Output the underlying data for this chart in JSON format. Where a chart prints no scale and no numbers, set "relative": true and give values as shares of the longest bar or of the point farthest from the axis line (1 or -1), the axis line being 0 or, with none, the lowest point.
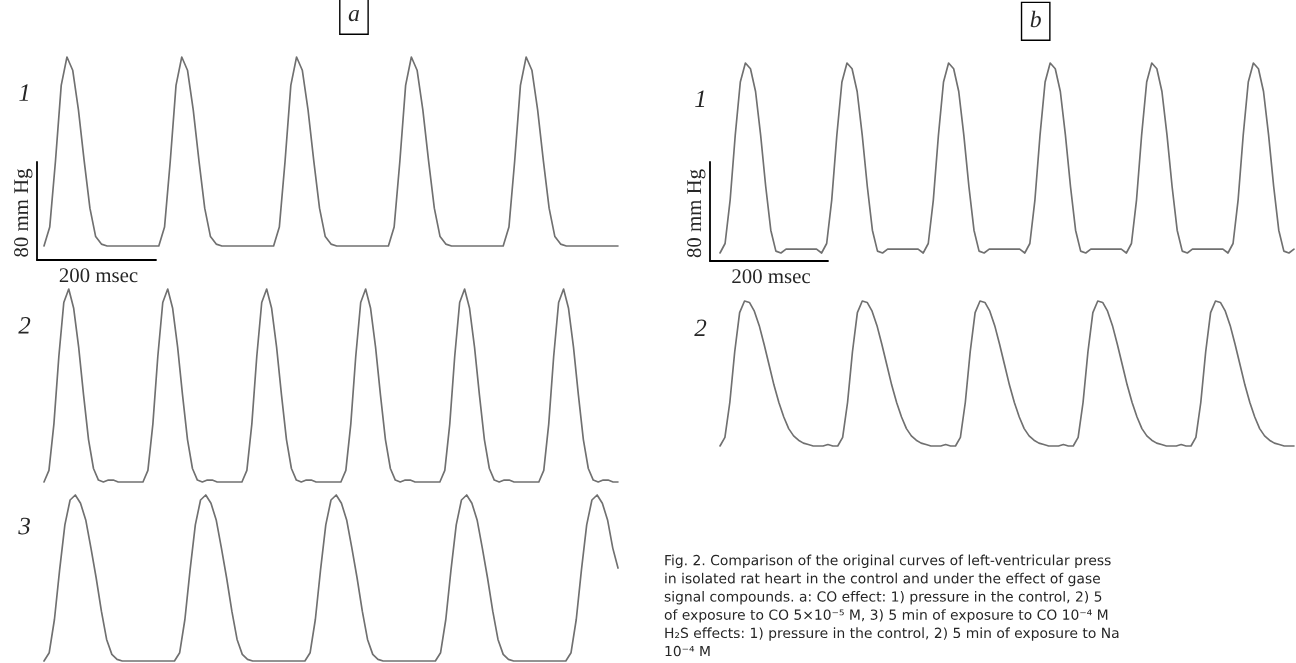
{
  "chart_data": [
    {
      "type": "line",
      "title": "a",
      "relative": true,
      "annotations": [
        "80 mm Hg",
        "200 msec"
      ],
      "categories": [
        null,
        null,
        null,
        null,
        null,
        null,
        null,
        null,
        null,
        null,
        null,
        null,
        null,
        null,
        null,
        null,
        null,
        null,
        null,
        null,
        null,
        null,
        null,
        null,
        null,
        null,
        null,
        null,
        null,
        null,
        null,
        null,
        null,
        null,
        null,
        null,
        null,
        null,
        null,
        null,
        null,
        null,
        null,
        null,
        null,
        null,
        null,
        null,
        null,
        null,
        null,
        null,
        null,
        null,
        null,
        null,
        null,
        null,
        null,
        null,
        null,
        null,
        null,
        null,
        null,
        null,
        null,
        null,
        null,
        null,
        null,
        null,
        null,
        null,
        null,
        null,
        null,
        null,
        null,
        null,
        null,
        null,
        null,
        null,
        null,
        null,
        null,
        null,
        null,
        null,
        null,
        null,
        null,
        null,
        null,
        null,
        null,
        null,
        null,
        null,
        null
      ],
      "series": [
        {
          "name": "1",
          "color": "#707070",
          "values": [
            0,
            0.1,
            0.45,
            0.85,
            1,
            0.93,
            0.72,
            0.45,
            0.2,
            0.05,
            0.01,
            0,
            0,
            0,
            0,
            0,
            0,
            0,
            0,
            0,
            0,
            0.1,
            0.45,
            0.85,
            1,
            0.93,
            0.72,
            0.45,
            0.2,
            0.05,
            0.01,
            0,
            0,
            0,
            0,
            0,
            0,
            0,
            0,
            0,
            0,
            0.1,
            0.45,
            0.85,
            1,
            0.93,
            0.72,
            0.45,
            0.2,
            0.05,
            0.01,
            0,
            0,
            0,
            0,
            0,
            0,
            0,
            0,
            0,
            0,
            0.1,
            0.45,
            0.85,
            1,
            0.93,
            0.72,
            0.45,
            0.2,
            0.05,
            0.01,
            0,
            0,
            0,
            0,
            0,
            0,
            0,
            0,
            0,
            0,
            0.1,
            0.45,
            0.85,
            1,
            0.93,
            0.72,
            0.45,
            0.2,
            0.05,
            0.01,
            0,
            0,
            0,
            0,
            0,
            0,
            0,
            0,
            0,
            0
          ]
        }
      ]
    },
    {
      "type": "line",
      "relative": true,
      "categories": [
        null,
        null,
        null,
        null,
        null,
        null,
        null,
        null,
        null,
        null,
        null,
        null,
        null,
        null,
        null,
        null,
        null,
        null,
        null,
        null,
        null,
        null,
        null,
        null,
        null,
        null,
        null,
        null,
        null,
        null,
        null,
        null,
        null,
        null,
        null,
        null,
        null,
        null,
        null,
        null,
        null,
        null,
        null,
        null,
        null,
        null,
        null,
        null,
        null,
        null,
        null,
        null,
        null,
        null,
        null,
        null,
        null,
        null,
        null,
        null,
        null,
        null,
        null,
        null,
        null,
        null,
        null,
        null,
        null,
        null,
        null,
        null,
        null,
        null,
        null,
        null,
        null,
        null,
        null,
        null,
        null,
        null,
        null,
        null,
        null,
        null,
        null,
        null,
        null,
        null,
        null,
        null,
        null,
        null,
        null,
        null,
        null,
        null,
        null,
        null,
        null,
        null,
        null,
        null,
        null,
        null,
        null,
        null,
        null,
        null,
        null,
        null,
        null,
        null,
        null,
        null,
        null
      ],
      "series": [
        {
          "name": "2",
          "color": "#707070",
          "values": [
            0,
            0.06,
            0.3,
            0.65,
            0.93,
            1,
            0.9,
            0.7,
            0.45,
            0.22,
            0.07,
            0.01,
            0,
            0.01,
            0.01,
            0,
            0,
            0,
            0,
            0,
            0,
            0.06,
            0.3,
            0.65,
            0.93,
            1,
            0.9,
            0.7,
            0.45,
            0.22,
            0.07,
            0.01,
            0,
            0.01,
            0.01,
            0,
            0,
            0,
            0,
            0,
            0,
            0.06,
            0.3,
            0.65,
            0.93,
            1,
            0.9,
            0.7,
            0.45,
            0.22,
            0.07,
            0.01,
            0,
            0.01,
            0.01,
            0,
            0,
            0,
            0,
            0,
            0,
            0.06,
            0.3,
            0.65,
            0.93,
            1,
            0.9,
            0.7,
            0.45,
            0.22,
            0.07,
            0.01,
            0,
            0.01,
            0.01,
            0,
            0,
            0,
            0,
            0,
            0,
            0.06,
            0.3,
            0.65,
            0.93,
            1,
            0.9,
            0.7,
            0.45,
            0.22,
            0.07,
            0.01,
            0,
            0.01,
            0.01,
            0,
            0,
            0,
            0,
            0,
            0,
            0.06,
            0.3,
            0.65,
            0.93,
            1,
            0.9,
            0.7,
            0.45,
            0.22,
            0.07,
            0.01,
            0,
            0.01,
            0.01,
            0,
            0
          ]
        }
      ]
    },
    {
      "type": "line",
      "relative": true,
      "categories": [
        null,
        null,
        null,
        null,
        null,
        null,
        null,
        null,
        null,
        null,
        null,
        null,
        null,
        null,
        null,
        null,
        null,
        null,
        null,
        null,
        null,
        null,
        null,
        null,
        null,
        null,
        null,
        null,
        null,
        null,
        null,
        null,
        null,
        null,
        null,
        null,
        null,
        null,
        null,
        null,
        null,
        null,
        null,
        null,
        null,
        null,
        null,
        null,
        null,
        null,
        null,
        null,
        null,
        null,
        null,
        null,
        null,
        null,
        null,
        null,
        null,
        null,
        null,
        null,
        null,
        null,
        null,
        null,
        null,
        null,
        null,
        null,
        null,
        null,
        null,
        null,
        null,
        null,
        null,
        null,
        null,
        null,
        null,
        null,
        null,
        null,
        null,
        null,
        null,
        null,
        null,
        null,
        null,
        null,
        null,
        null,
        null,
        null,
        null,
        null,
        null,
        null,
        null,
        null,
        null,
        null,
        null,
        null,
        null,
        null,
        null
      ],
      "series": [
        {
          "name": "3",
          "color": "#707070",
          "values": [
            0,
            0.05,
            0.25,
            0.55,
            0.82,
            0.97,
            1,
            0.95,
            0.85,
            0.68,
            0.5,
            0.3,
            0.13,
            0.04,
            0.01,
            0,
            0,
            0,
            0,
            0,
            0,
            0,
            0,
            0,
            0,
            0,
            0.05,
            0.25,
            0.55,
            0.82,
            0.97,
            1,
            0.95,
            0.85,
            0.68,
            0.5,
            0.3,
            0.13,
            0.04,
            0.01,
            0,
            0,
            0,
            0,
            0,
            0,
            0,
            0,
            0,
            0,
            0,
            0.05,
            0.25,
            0.55,
            0.82,
            0.97,
            1,
            0.95,
            0.85,
            0.68,
            0.5,
            0.3,
            0.13,
            0.04,
            0.01,
            0,
            0,
            0,
            0,
            0,
            0,
            0,
            0,
            0,
            0,
            0,
            0.05,
            0.25,
            0.55,
            0.82,
            0.97,
            1,
            0.95,
            0.85,
            0.68,
            0.5,
            0.3,
            0.13,
            0.04,
            0.01,
            0,
            0,
            0,
            0,
            0,
            0,
            0,
            0,
            0,
            0,
            0,
            0.05,
            0.25,
            0.55,
            0.82,
            0.97,
            1,
            0.95,
            0.85,
            0.68,
            0.56
          ]
        }
      ]
    },
    {
      "type": "line",
      "title": "b",
      "relative": true,
      "annotations": [
        "80 mm Hg",
        "200 msec"
      ],
      "categories": [
        null,
        null,
        null,
        null,
        null,
        null,
        null,
        null,
        null,
        null,
        null,
        null,
        null,
        null,
        null,
        null,
        null,
        null,
        null,
        null,
        null,
        null,
        null,
        null,
        null,
        null,
        null,
        null,
        null,
        null,
        null,
        null,
        null,
        null,
        null,
        null,
        null,
        null,
        null,
        null,
        null,
        null,
        null,
        null,
        null,
        null,
        null,
        null,
        null,
        null,
        null,
        null,
        null,
        null,
        null,
        null,
        null,
        null,
        null,
        null,
        null,
        null,
        null,
        null,
        null,
        null,
        null,
        null,
        null,
        null,
        null,
        null,
        null,
        null,
        null,
        null,
        null,
        null,
        null,
        null,
        null,
        null,
        null,
        null,
        null,
        null,
        null,
        null,
        null,
        null,
        null,
        null,
        null,
        null,
        null,
        null,
        null,
        null,
        null,
        null,
        null,
        null,
        null,
        null,
        null,
        null,
        null,
        null,
        null,
        null,
        null,
        null,
        null,
        null
      ],
      "series": [
        {
          "name": "1",
          "color": "#707070",
          "values": [
            0,
            0.05,
            0.28,
            0.62,
            0.9,
            1,
            0.97,
            0.85,
            0.62,
            0.35,
            0.12,
            0.01,
            0,
            0.02,
            0.02,
            0.02,
            0.02,
            0.02,
            0.02,
            0.02,
            0,
            0.05,
            0.28,
            0.62,
            0.9,
            1,
            0.97,
            0.85,
            0.62,
            0.35,
            0.12,
            0.01,
            0,
            0.02,
            0.02,
            0.02,
            0.02,
            0.02,
            0.02,
            0.02,
            0,
            0.05,
            0.28,
            0.62,
            0.9,
            1,
            0.97,
            0.85,
            0.62,
            0.35,
            0.12,
            0.01,
            0,
            0.02,
            0.02,
            0.02,
            0.02,
            0.02,
            0.02,
            0.02,
            0,
            0.05,
            0.28,
            0.62,
            0.9,
            1,
            0.97,
            0.85,
            0.62,
            0.35,
            0.12,
            0.01,
            0,
            0.02,
            0.02,
            0.02,
            0.02,
            0.02,
            0.02,
            0.02,
            0,
            0.05,
            0.28,
            0.62,
            0.9,
            1,
            0.97,
            0.85,
            0.62,
            0.35,
            0.12,
            0.01,
            0,
            0.02,
            0.02,
            0.02,
            0.02,
            0.02,
            0.02,
            0.02,
            0,
            0.05,
            0.28,
            0.62,
            0.9,
            1,
            0.97,
            0.85,
            0.62,
            0.35,
            0.12,
            0.01,
            0,
            0.02
          ]
        }
      ]
    },
    {
      "type": "line",
      "relative": true,
      "annotations": [
        "Fig. 2. Comparison of the original curves of left-ventricular press\nin isolated rat heart in the control and under the effect of gase\nsignal compounds. a: CO effect: 1) pressure in the control, 2) 5\nof exposure to CO 5×10⁻⁵ M, 3) 5 min of exposure to CO 10⁻⁴ M\nH₂S effects: 1) pressure in the control, 2) 5 min of exposure to Na\n10⁻⁴ M"
      ],
      "categories": [
        null,
        null,
        null,
        null,
        null,
        null,
        null,
        null,
        null,
        null,
        null,
        null,
        null,
        null,
        null,
        null,
        null,
        null,
        null,
        null,
        null,
        null,
        null,
        null,
        null,
        null,
        null,
        null,
        null,
        null,
        null,
        null,
        null,
        null,
        null,
        null,
        null,
        null,
        null,
        null,
        null,
        null,
        null,
        null,
        null,
        null,
        null,
        null,
        null,
        null,
        null,
        null,
        null,
        null,
        null,
        null,
        null,
        null,
        null,
        null,
        null,
        null,
        null,
        null,
        null,
        null,
        null,
        null,
        null,
        null,
        null,
        null,
        null,
        null,
        null,
        null,
        null,
        null,
        null,
        null,
        null,
        null,
        null,
        null,
        null,
        null,
        null,
        null,
        null,
        null,
        null,
        null,
        null,
        null,
        null,
        null,
        null,
        null,
        null,
        null,
        null,
        null,
        null,
        null,
        null,
        null,
        null,
        null,
        null,
        null,
        null,
        null,
        null,
        null,
        null,
        null,
        null,
        null
      ],
      "series": [
        {
          "name": "2",
          "color": "#707070",
          "values": [
            0,
            0.06,
            0.3,
            0.65,
            0.92,
            1,
            0.99,
            0.93,
            0.83,
            0.7,
            0.56,
            0.42,
            0.3,
            0.2,
            0.12,
            0.07,
            0.04,
            0.02,
            0.01,
            0,
            0,
            0,
            0.01,
            0,
            0,
            0.06,
            0.3,
            0.65,
            0.92,
            1,
            0.99,
            0.93,
            0.83,
            0.7,
            0.56,
            0.42,
            0.3,
            0.2,
            0.12,
            0.07,
            0.04,
            0.02,
            0.01,
            0,
            0,
            0,
            0.01,
            0,
            0,
            0.06,
            0.3,
            0.65,
            0.92,
            1,
            0.99,
            0.93,
            0.83,
            0.7,
            0.56,
            0.42,
            0.3,
            0.2,
            0.12,
            0.07,
            0.04,
            0.02,
            0.01,
            0,
            0,
            0,
            0.01,
            0,
            0,
            0.06,
            0.3,
            0.65,
            0.92,
            1,
            0.99,
            0.93,
            0.83,
            0.7,
            0.56,
            0.42,
            0.3,
            0.2,
            0.12,
            0.07,
            0.04,
            0.02,
            0.01,
            0,
            0,
            0,
            0.01,
            0,
            0,
            0.06,
            0.3,
            0.65,
            0.92,
            1,
            0.99,
            0.93,
            0.83,
            0.7,
            0.56,
            0.42,
            0.3,
            0.2,
            0.12,
            0.07,
            0.04,
            0.02,
            0.01,
            0,
            0,
            0
          ]
        }
      ]
    }
  ]
}
